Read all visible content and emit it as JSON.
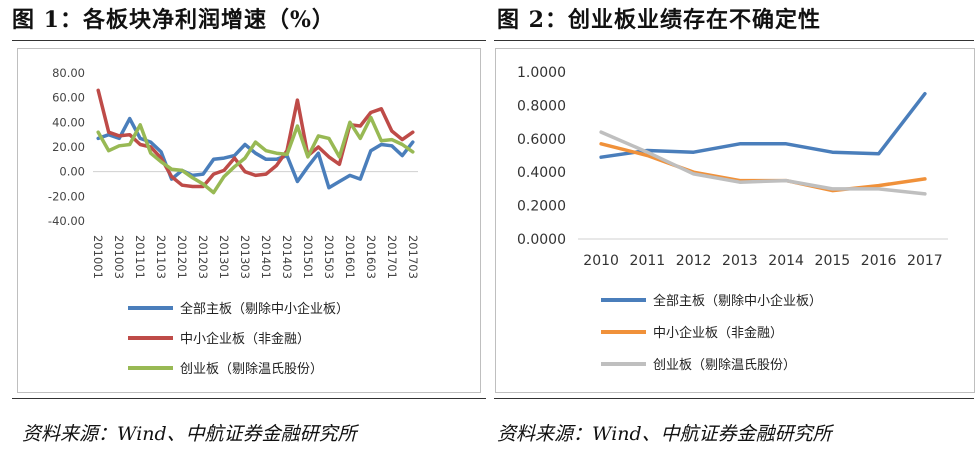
{
  "figure1": {
    "title": "图 1：各板块净利润增速（%）",
    "source": "资料来源：Wind、中航证券金融研究所"
  },
  "figure2": {
    "title": "图 2：创业板业绩存在不确定性",
    "source": "资料来源：Wind、中航证券金融研究所"
  },
  "chart_data": [
    {
      "type": "line",
      "title": "各板块净利润增速（%）",
      "ylim": [
        -40,
        80
      ],
      "yticks": [
        "80.00",
        "60.00",
        "40.00",
        "20.00",
        "0.00",
        "-20.00",
        "-40.00"
      ],
      "x": [
        "201001",
        "201002",
        "201003",
        "201004",
        "201101",
        "201102",
        "201103",
        "201104",
        "201201",
        "201202",
        "201203",
        "201204",
        "201301",
        "201302",
        "201303",
        "201304",
        "201401",
        "201402",
        "201403",
        "201404",
        "201501",
        "201502",
        "201503",
        "201504",
        "201601",
        "201602",
        "201603",
        "201604",
        "201701",
        "201702",
        "201703"
      ],
      "xticks": [
        "201001",
        "201003",
        "201101",
        "201103",
        "201201",
        "201203",
        "201301",
        "201303",
        "201401",
        "201403",
        "201501",
        "201503",
        "201601",
        "201603",
        "201701",
        "201703"
      ],
      "legend": "bottom",
      "series": [
        {
          "name": "全部主板（剔除中小企业板）",
          "color": "#4a7ebb",
          "values": [
            27,
            30,
            27,
            43,
            27,
            24,
            16,
            -6,
            1,
            -3,
            -2,
            10,
            11,
            13,
            22,
            15,
            10,
            10,
            13,
            -8,
            4,
            15,
            -13,
            -8,
            -3,
            -6,
            17,
            22,
            21,
            13,
            24
          ]
        },
        {
          "name": "中小企业板（非金融）",
          "color": "#be4b48",
          "values": [
            66,
            32,
            29,
            30,
            22,
            20,
            11,
            -4,
            -11,
            -12,
            -12,
            -2,
            1,
            11,
            0,
            -3,
            -2,
            5,
            17,
            58,
            13,
            20,
            12,
            6,
            38,
            37,
            48,
            51,
            33,
            26,
            32
          ]
        },
        {
          "name": "创业板（剔除温氏股份）",
          "color": "#98b954",
          "values": [
            32,
            17,
            21,
            22,
            38,
            15,
            8,
            2,
            1,
            -5,
            -10,
            -17,
            -4,
            4,
            11,
            24,
            17,
            15,
            14,
            37,
            12,
            29,
            27,
            12,
            40,
            27,
            44,
            25,
            26,
            22,
            16
          ]
        }
      ]
    },
    {
      "type": "line",
      "title": "创业板业绩存在不确定性",
      "ylim": [
        0,
        1
      ],
      "yticks": [
        "1.0000",
        "0.8000",
        "0.6000",
        "0.4000",
        "0.2000",
        "0.0000"
      ],
      "x": [
        "2010",
        "2011",
        "2012",
        "2013",
        "2014",
        "2015",
        "2016",
        "2017"
      ],
      "legend": "bottom",
      "series": [
        {
          "name": "全部主板（剔除中小企业板）",
          "color": "#4a7ebb",
          "values": [
            0.49,
            0.53,
            0.52,
            0.57,
            0.57,
            0.52,
            0.51,
            0.87
          ]
        },
        {
          "name": "中小企业板（非金融）",
          "color": "#f0913a",
          "values": [
            0.57,
            0.5,
            0.4,
            0.35,
            0.35,
            0.29,
            0.32,
            0.36
          ]
        },
        {
          "name": "创业板（剔除温氏股份）",
          "color": "#bfbfbf",
          "values": [
            0.64,
            0.52,
            0.39,
            0.34,
            0.35,
            0.3,
            0.3,
            0.27
          ]
        }
      ]
    }
  ]
}
